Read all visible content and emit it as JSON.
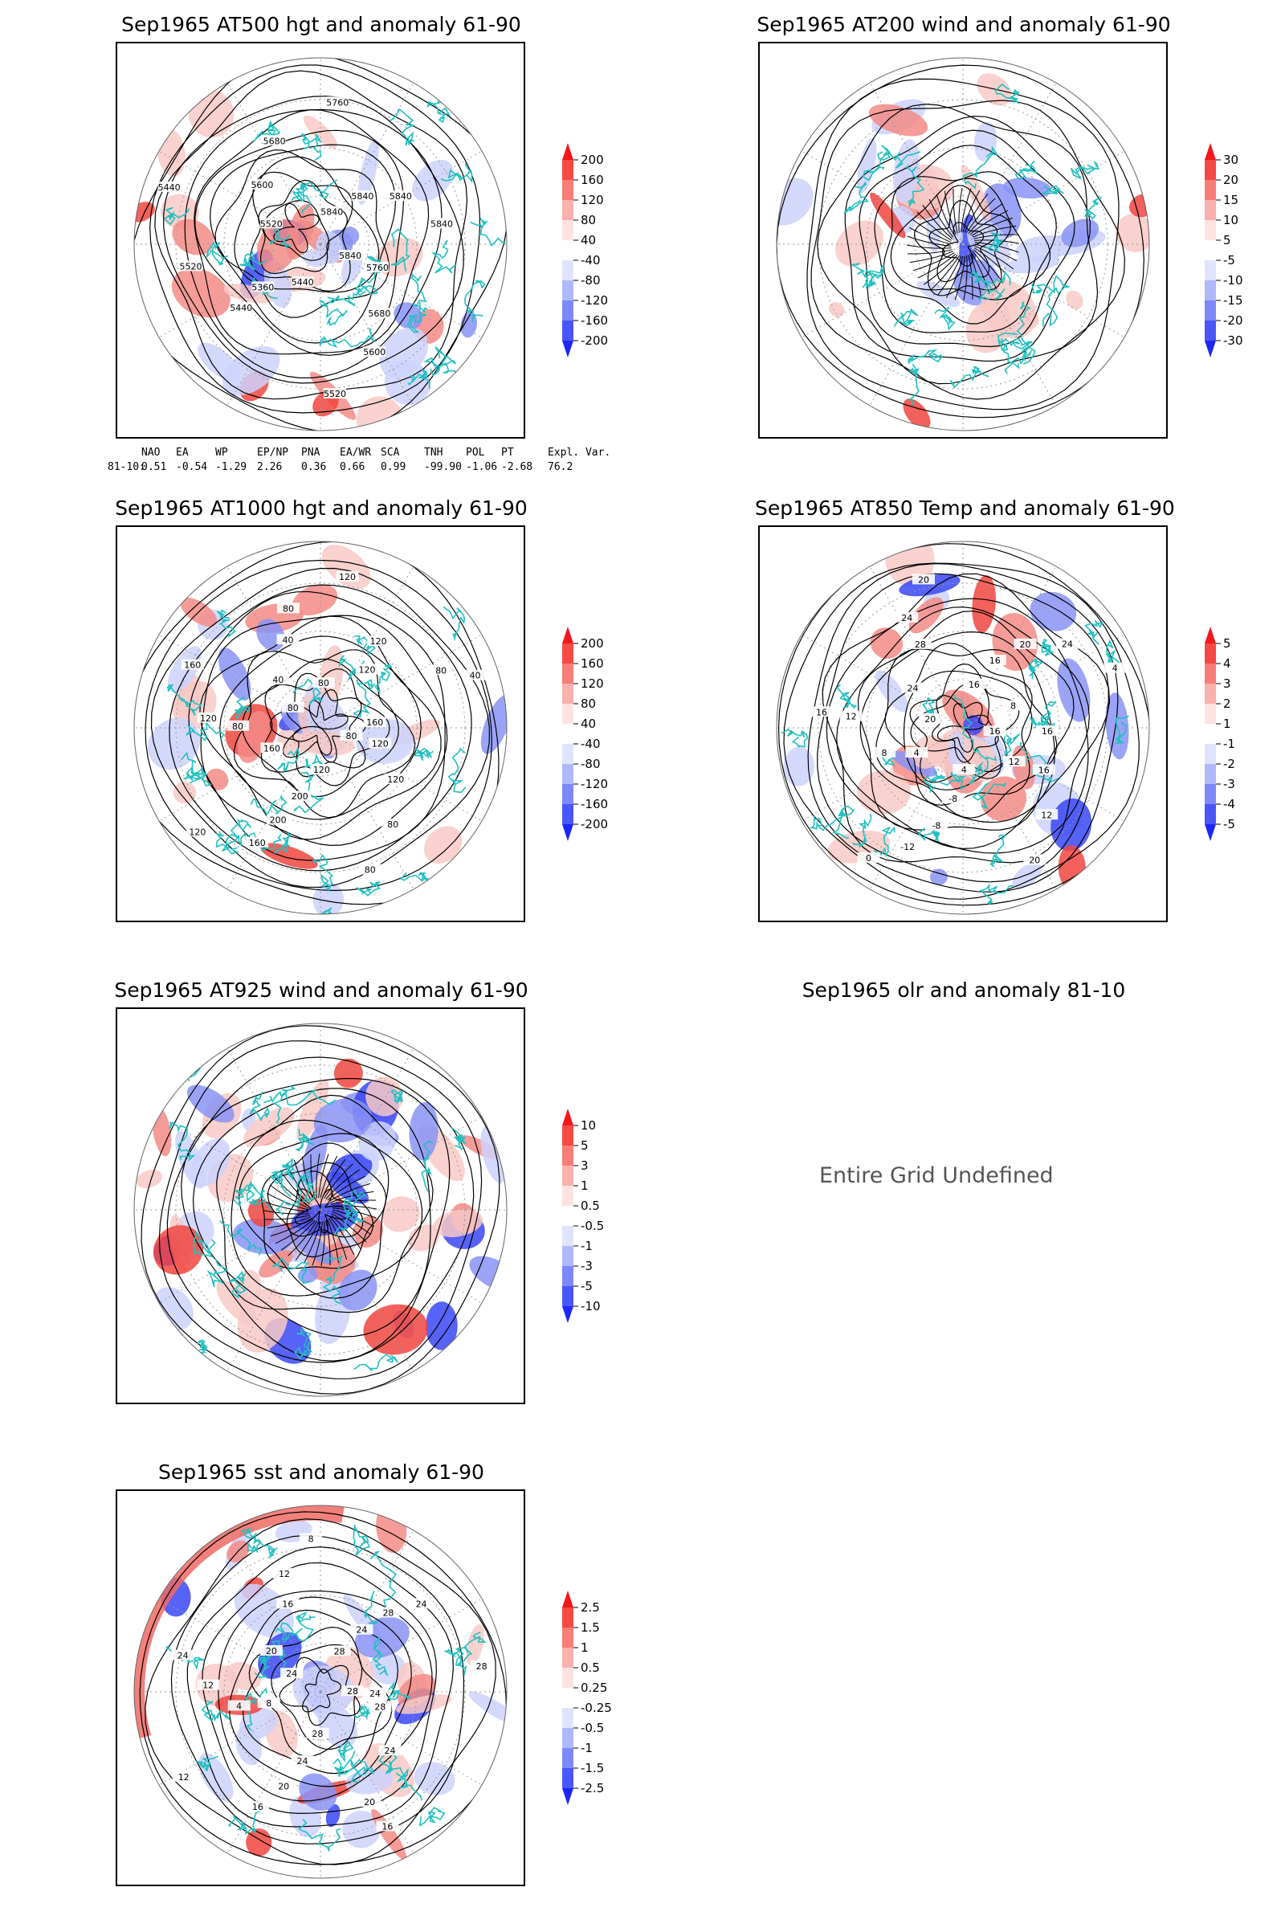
{
  "panels": [
    {
      "id": "p1",
      "title": "Sep1965 AT500 hgt and anomaly 61-90",
      "kind": "hgt",
      "contour_labels": [
        "5840",
        "5760",
        "5680",
        "5600",
        "5520",
        "5440",
        "5360",
        "5440",
        "5520",
        "5440",
        "5520",
        "5600",
        "5680",
        "5760",
        "5840",
        "5840",
        "5840",
        "5840"
      ],
      "colorbar": [
        "200",
        "160",
        "120",
        "80",
        "40",
        "-40",
        "-80",
        "-120",
        "-160",
        "-200"
      ]
    },
    {
      "id": "p2",
      "title": "Sep1965 AT200 wind and anomaly 61-90",
      "kind": "wind",
      "contour_labels": [],
      "colorbar": [
        "30",
        "20",
        "15",
        "10",
        "5",
        "-5",
        "-10",
        "-15",
        "-20",
        "-30"
      ]
    },
    {
      "id": "p3",
      "title": "Sep1965 AT1000 hgt and anomaly 61-90",
      "kind": "hgt",
      "contour_labels": [
        "80",
        "120",
        "120",
        "80",
        "80",
        "120",
        "200",
        "200",
        "160",
        "120",
        "160",
        "80",
        "120",
        "160",
        "80",
        "40",
        "40",
        "80",
        "120",
        "80",
        "120",
        "120",
        "80",
        "40",
        "160"
      ],
      "colorbar": [
        "200",
        "160",
        "120",
        "80",
        "40",
        "-40",
        "-80",
        "-120",
        "-160",
        "-200"
      ]
    },
    {
      "id": "p4",
      "title": "Sep1965 AT850 Temp and anomaly 61-90",
      "kind": "temp",
      "contour_labels": [
        "16",
        "12",
        "16",
        "12",
        "20",
        "4",
        "-8",
        "-8",
        "-12",
        "0",
        "4",
        "8",
        "12",
        "16",
        "20",
        "24",
        "28",
        "24",
        "20",
        "16",
        "16",
        "20",
        "24",
        "4",
        "8",
        "16"
      ],
      "colorbar": [
        "5",
        "4",
        "3",
        "2",
        "1",
        "-1",
        "-2",
        "-3",
        "-4",
        "-5"
      ]
    },
    {
      "id": "p5",
      "title": "Sep1965 AT925 wind and anomaly 61-90",
      "kind": "wind",
      "contour_labels": [],
      "colorbar": [
        "10",
        "5",
        "3",
        "1",
        "0.5",
        "-0.5",
        "-1",
        "-3",
        "-5",
        "-10"
      ]
    },
    {
      "id": "p6",
      "title": "Sep1965 olr and anomaly 81-10",
      "kind": "undefined",
      "message": "Entire Grid Undefined"
    },
    {
      "id": "p7",
      "title": "Sep1965 sst and anomaly 61-90",
      "kind": "sst",
      "contour_labels": [
        "28",
        "28",
        "24",
        "20",
        "16",
        "28",
        "24",
        "20",
        "16",
        "12",
        "8",
        "4",
        "12",
        "24",
        "24",
        "20",
        "16",
        "12",
        "8",
        "28",
        "24",
        "28",
        "24",
        "28",
        "24"
      ],
      "colorbar": [
        "2.5",
        "1.5",
        "1",
        "0.5",
        "0.25",
        "-0.25",
        "-0.5",
        "-1",
        "-1.5",
        "-2.5"
      ]
    }
  ],
  "index_table": {
    "headers": [
      "NAO",
      "EA",
      "WP",
      "EP/NP",
      "PNA",
      "EA/WR",
      "SCA",
      "TNH",
      "POL",
      "PT",
      "Expl. Var."
    ],
    "row_label": "81-10:",
    "values": [
      "0.51",
      "-0.54",
      "-1.29",
      "2.26",
      "0.36",
      "0.66",
      "0.99",
      "-99.90",
      "-1.06",
      "-2.68",
      "76.2"
    ]
  },
  "colors": {
    "coast": "#20c0c0",
    "contour": "#000000",
    "pos": "#e8251f",
    "neg": "#2b2bff",
    "grid": "#999999"
  },
  "chart_data": [
    {
      "type": "heatmap",
      "title": "Sep1965 AT500 hgt and anomaly 61-90",
      "colorbar_levels": [
        200,
        160,
        120,
        80,
        40,
        -40,
        -80,
        -120,
        -160,
        -200
      ]
    },
    {
      "type": "heatmap",
      "title": "Sep1965 AT200 wind and anomaly 61-90",
      "colorbar_levels": [
        30,
        20,
        15,
        10,
        5,
        -5,
        -10,
        -15,
        -20,
        -30
      ]
    },
    {
      "type": "heatmap",
      "title": "Sep1965 AT1000 hgt and anomaly 61-90",
      "colorbar_levels": [
        200,
        160,
        120,
        80,
        40,
        -40,
        -80,
        -120,
        -160,
        -200
      ]
    },
    {
      "type": "heatmap",
      "title": "Sep1965 AT850 Temp and anomaly 61-90",
      "colorbar_levels": [
        5,
        4,
        3,
        2,
        1,
        -1,
        -2,
        -3,
        -4,
        -5
      ]
    },
    {
      "type": "heatmap",
      "title": "Sep1965 AT925 wind and anomaly 61-90",
      "colorbar_levels": [
        10,
        5,
        3,
        1,
        0.5,
        -0.5,
        -1,
        -3,
        -5,
        -10
      ]
    },
    {
      "type": "heatmap",
      "title": "Sep1965 olr and anomaly 81-10"
    },
    {
      "type": "heatmap",
      "title": "Sep1965 sst and anomaly 61-90",
      "colorbar_levels": [
        2.5,
        1.5,
        1,
        0.5,
        0.25,
        -0.25,
        -0.5,
        -1,
        -1.5,
        -2.5
      ]
    }
  ]
}
